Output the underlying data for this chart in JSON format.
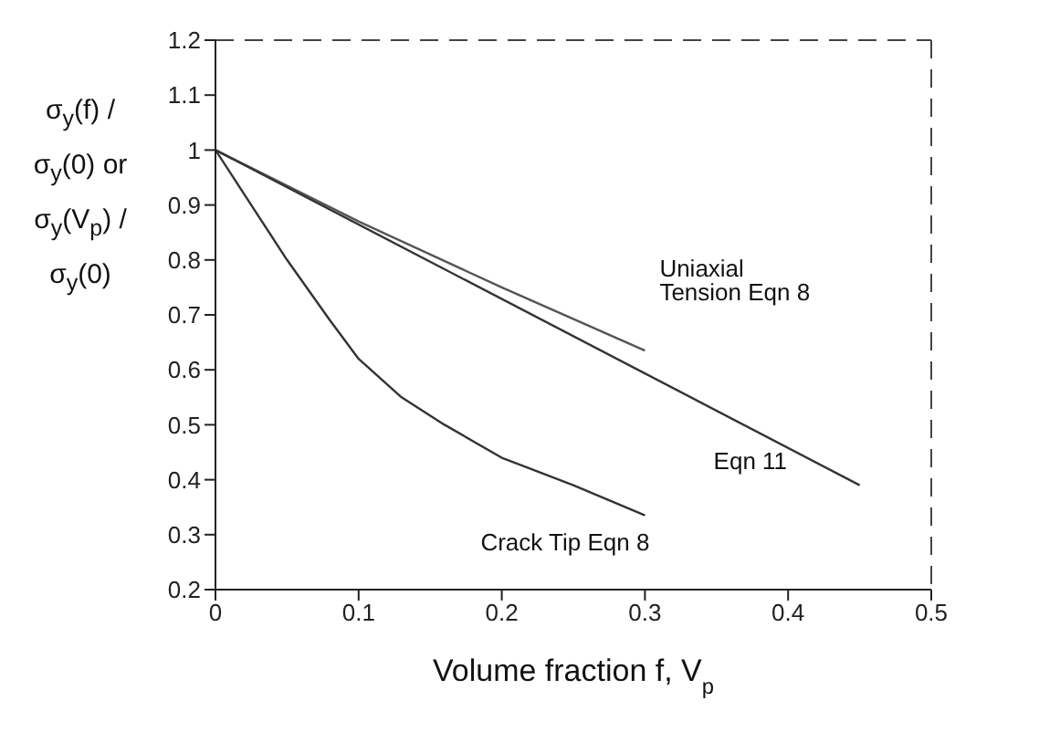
{
  "chart_data": {
    "type": "line",
    "xlabel": "Volume fraction f, V$_{p}$",
    "ylabel": "σ$_{y}$(f) / σ$_{y}$(0) or σ$_{y}$(V$_{p}$) / σ$_{y}$(0)",
    "xlim": [
      0,
      0.5
    ],
    "xticks": [
      0,
      0.1,
      0.2,
      0.3,
      0.4,
      0.5
    ],
    "ylim": [
      0.2,
      1.2
    ],
    "yticks": [
      0.2,
      0.3,
      0.4,
      0.5,
      0.6,
      0.7,
      0.8,
      0.9,
      1,
      1.1,
      1.2
    ],
    "grid": false,
    "legend": false,
    "marker": "none",
    "line_style": "solid",
    "series": [
      {
        "name": "Uniaxial Tension Eqn 8",
        "color": "#555555",
        "x": [
          0,
          0.1,
          0.2,
          0.3
        ],
        "values": [
          1,
          0.87,
          0.75,
          0.635
        ]
      },
      {
        "name": "Eqn 11",
        "color": "#333333",
        "x": [
          0,
          0.45
        ],
        "values": [
          1,
          0.39
        ]
      },
      {
        "name": "Crack Tip Eqn 8",
        "color": "#333333",
        "x": [
          0,
          0.02,
          0.05,
          0.08,
          0.1,
          0.13,
          0.16,
          0.2,
          0.25,
          0.3
        ],
        "values": [
          1,
          0.92,
          0.8,
          0.69,
          0.62,
          0.55,
          0.5,
          0.44,
          0.39,
          0.335
        ]
      }
    ]
  }
}
